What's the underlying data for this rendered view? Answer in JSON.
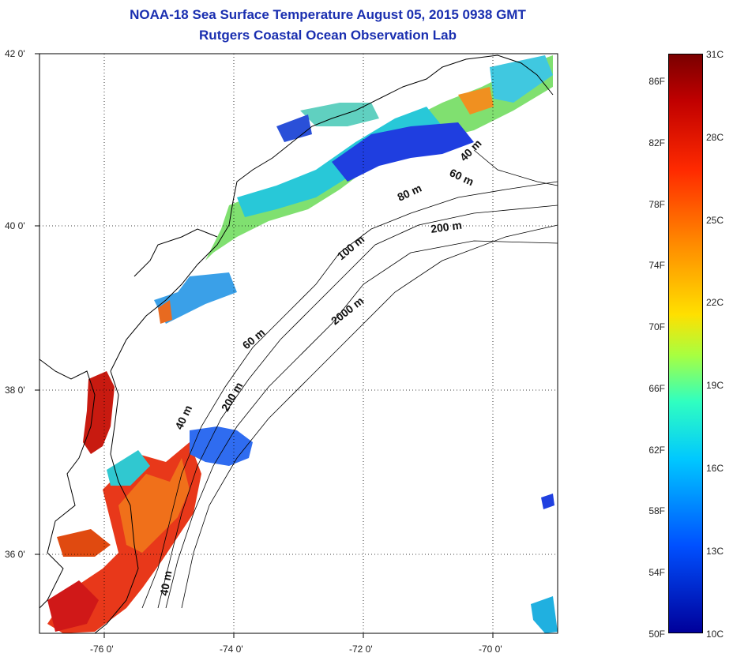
{
  "title": {
    "line1": "NOAA-18 Sea Surface Temperature August 05, 2015 0938 GMT",
    "line2": "Rutgers Coastal Ocean Observation Lab"
  },
  "map": {
    "lat_labels": [
      "42 0'",
      "40 0'",
      "38 0'",
      "36 0'"
    ],
    "lon_labels": [
      "-76 0'",
      "-74 0'",
      "-72 0'",
      "-70 0'"
    ],
    "contour_labels": [
      "40 m",
      "60 m",
      "80 m",
      "200 m",
      "100 m",
      "2000 m",
      "60 m",
      "40 m",
      "200 m",
      "40 m"
    ],
    "colors": {
      "frame": "#000000",
      "coast": "#000000",
      "grid": "#000000"
    }
  },
  "colorbar": {
    "fahrenheit": [
      "86F",
      "82F",
      "78F",
      "74F",
      "70F",
      "66F",
      "62F",
      "58F",
      "54F",
      "50F"
    ],
    "celsius": [
      "31C",
      "28C",
      "25C",
      "22C",
      "19C",
      "16C",
      "13C",
      "10C"
    ]
  }
}
